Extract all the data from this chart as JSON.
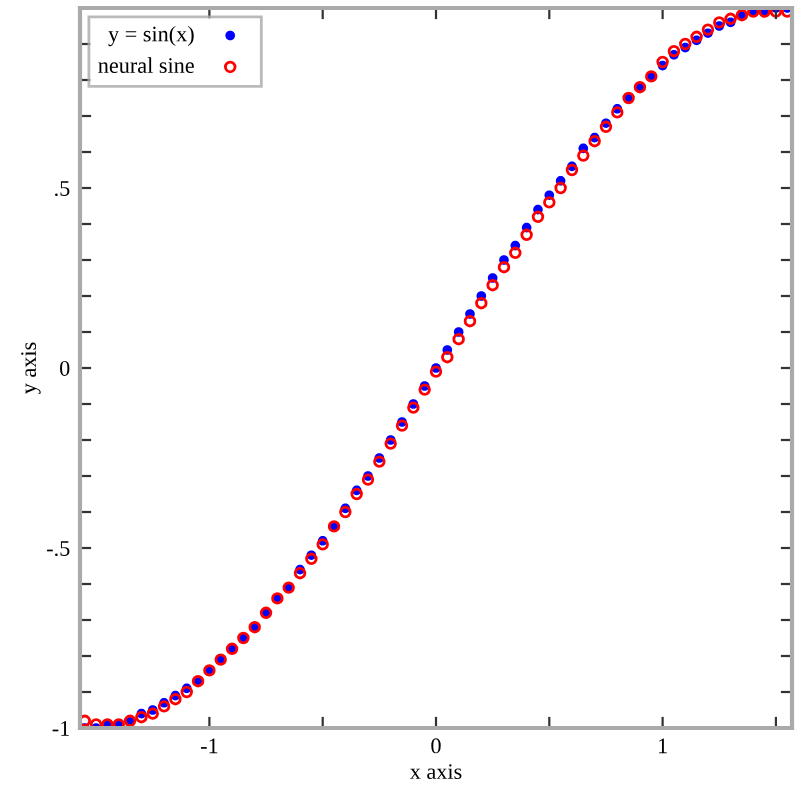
{
  "chart_data": {
    "type": "scatter",
    "xlabel": "x axis",
    "ylabel": "y axis",
    "x": [
      -1.55,
      -1.5,
      -1.45,
      -1.4,
      -1.35,
      -1.3,
      -1.25,
      -1.2,
      -1.15,
      -1.1,
      -1.05,
      -1.0,
      -0.95,
      -0.9,
      -0.85,
      -0.8,
      -0.75,
      -0.7,
      -0.65,
      -0.6,
      -0.55,
      -0.5,
      -0.45,
      -0.4,
      -0.35,
      -0.3,
      -0.25,
      -0.2,
      -0.15,
      -0.1,
      -0.05,
      0,
      0.05,
      0.1,
      0.15,
      0.2,
      0.25,
      0.3,
      0.35,
      0.4,
      0.45,
      0.5,
      0.55,
      0.6,
      0.65,
      0.7,
      0.75,
      0.8,
      0.85,
      0.9,
      0.95,
      1.0,
      1.05,
      1.1,
      1.15,
      1.2,
      1.25,
      1.3,
      1.35,
      1.4,
      1.45,
      1.5,
      1.55
    ],
    "series": [
      {
        "name": "y = sin(x)",
        "color": "#0000ff",
        "marker": "circle",
        "values": [
          -1.0,
          -1.0,
          -0.99,
          -0.99,
          -0.98,
          -0.96,
          -0.95,
          -0.93,
          -0.91,
          -0.89,
          -0.87,
          -0.84,
          -0.81,
          -0.78,
          -0.75,
          -0.72,
          -0.68,
          -0.64,
          -0.61,
          -0.56,
          -0.52,
          -0.48,
          -0.44,
          -0.39,
          -0.34,
          -0.3,
          -0.25,
          -0.2,
          -0.15,
          -0.1,
          -0.05,
          0,
          0.05,
          0.1,
          0.15,
          0.2,
          0.25,
          0.3,
          0.34,
          0.39,
          0.44,
          0.48,
          0.52,
          0.56,
          0.61,
          0.64,
          0.68,
          0.72,
          0.75,
          0.78,
          0.81,
          0.84,
          0.87,
          0.89,
          0.91,
          0.93,
          0.95,
          0.96,
          0.98,
          0.99,
          0.99,
          1.0,
          1.0
        ]
      },
      {
        "name": "neural sine",
        "color": "#ff0000",
        "marker": "circle_open",
        "values": [
          -0.98,
          -0.99,
          -0.99,
          -0.99,
          -0.98,
          -0.97,
          -0.96,
          -0.94,
          -0.92,
          -0.9,
          -0.87,
          -0.84,
          -0.81,
          -0.78,
          -0.75,
          -0.72,
          -0.68,
          -0.64,
          -0.61,
          -0.57,
          -0.53,
          -0.49,
          -0.44,
          -0.4,
          -0.35,
          -0.31,
          -0.26,
          -0.21,
          -0.16,
          -0.11,
          -0.06,
          -0.01,
          0.03,
          0.08,
          0.13,
          0.18,
          0.23,
          0.28,
          0.32,
          0.37,
          0.42,
          0.46,
          0.5,
          0.55,
          0.59,
          0.63,
          0.67,
          0.71,
          0.75,
          0.78,
          0.81,
          0.85,
          0.88,
          0.9,
          0.92,
          0.94,
          0.96,
          0.97,
          0.98,
          0.99,
          0.99,
          0.99,
          0.99
        ]
      }
    ],
    "xlim": [
      -1.571,
      1.571
    ],
    "ylim": [
      -1,
      1
    ],
    "xticks": [
      -1,
      {
        "value": -0.5,
        "label": null
      },
      0,
      {
        "value": 0.5,
        "label": null
      },
      1,
      {
        "value": 1.5,
        "label": null
      }
    ],
    "yticks": [
      -1,
      {
        "value": -0.9,
        "label": null
      },
      {
        "value": -0.8,
        "label": null
      },
      {
        "value": -0.7,
        "label": null
      },
      {
        "value": -0.6,
        "label": null
      },
      {
        "value": -0.5,
        "label": "-.5"
      },
      {
        "value": -0.4,
        "label": null
      },
      {
        "value": -0.3,
        "label": null
      },
      {
        "value": -0.2,
        "label": null
      },
      {
        "value": -0.1,
        "label": null
      },
      0,
      {
        "value": 0.1,
        "label": null
      },
      {
        "value": 0.2,
        "label": null
      },
      {
        "value": 0.3,
        "label": null
      },
      {
        "value": 0.4,
        "label": null
      },
      {
        "value": 0.5,
        "label": ".5"
      },
      {
        "value": 0.6,
        "label": null
      },
      {
        "value": 0.7,
        "label": null
      },
      {
        "value": 0.8,
        "label": null
      },
      {
        "value": 0.9,
        "label": null
      }
    ],
    "legend": "top left",
    "grid": false
  }
}
